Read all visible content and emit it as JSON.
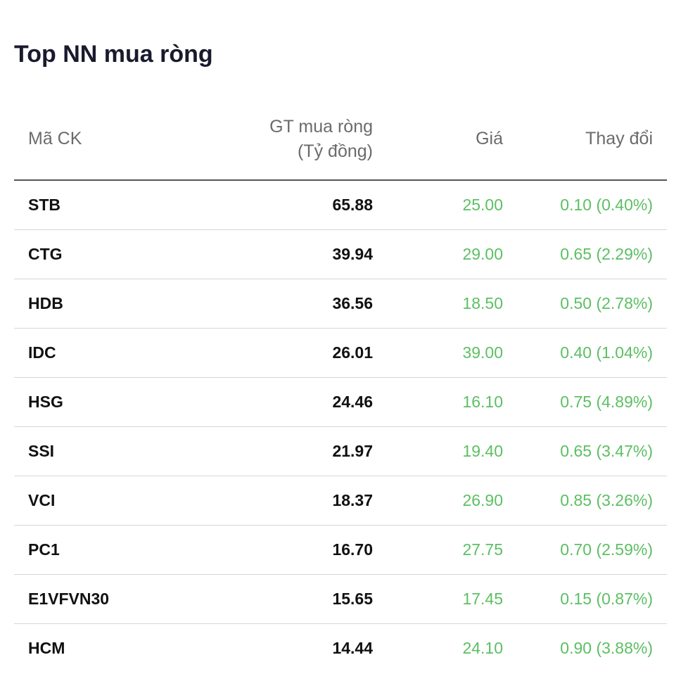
{
  "widget": {
    "title": "Top NN mua ròng"
  },
  "table": {
    "headers": {
      "symbol": "Mã CK",
      "net_value_line1": "GT mua ròng",
      "net_value_line2": "(Tỷ đồng)",
      "price": "Giá",
      "change": "Thay đổi"
    },
    "rows": [
      {
        "symbol": "STB",
        "net_value": "65.88",
        "price": "25.00",
        "change": "0.10 (0.40%)"
      },
      {
        "symbol": "CTG",
        "net_value": "39.94",
        "price": "29.00",
        "change": "0.65 (2.29%)"
      },
      {
        "symbol": "HDB",
        "net_value": "36.56",
        "price": "18.50",
        "change": "0.50 (2.78%)"
      },
      {
        "symbol": "IDC",
        "net_value": "26.01",
        "price": "39.00",
        "change": "0.40 (1.04%)"
      },
      {
        "symbol": "HSG",
        "net_value": "24.46",
        "price": "16.10",
        "change": "0.75 (4.89%)"
      },
      {
        "symbol": "SSI",
        "net_value": "21.97",
        "price": "19.40",
        "change": "0.65 (3.47%)"
      },
      {
        "symbol": "VCI",
        "net_value": "18.37",
        "price": "26.90",
        "change": "0.85 (3.26%)"
      },
      {
        "symbol": "PC1",
        "net_value": "16.70",
        "price": "27.75",
        "change": "0.70 (2.59%)"
      },
      {
        "symbol": "E1VFVN30",
        "net_value": "15.65",
        "price": "17.45",
        "change": "0.15 (0.87%)"
      },
      {
        "symbol": "HCM",
        "net_value": "14.44",
        "price": "24.10",
        "change": "0.90 (3.88%)"
      }
    ]
  },
  "colors": {
    "up": "#5cbf63",
    "title": "#1a1a2e",
    "header_text": "#6b6b6b"
  }
}
